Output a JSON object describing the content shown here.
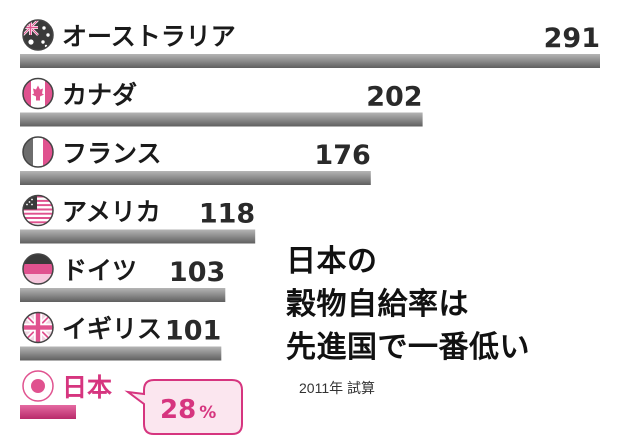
{
  "chart_data": {
    "type": "bar",
    "orientation": "horizontal",
    "categories": [
      "オーストラリア",
      "カナダ",
      "フランス",
      "アメリカ",
      "ドイツ",
      "イギリス",
      "日本"
    ],
    "values": [
      291,
      202,
      176,
      118,
      103,
      101,
      28
    ],
    "labels": [
      "291",
      "202",
      "176",
      "118",
      "103",
      "101",
      "28"
    ],
    "highlight": "日本",
    "highlight_unit": "%",
    "title_lines": [
      "日本の",
      "穀物自給率は",
      "先進国で一番低い"
    ],
    "note": "2011年 試算",
    "colors": {
      "bar": "#8a8a8a",
      "highlight": "#d6357f",
      "highlight_fill": "#fbe6ef"
    },
    "flags": [
      "australia-flag",
      "canada-flag",
      "france-flag",
      "usa-flag",
      "germany-flag",
      "uk-flag",
      "japan-flag"
    ]
  }
}
